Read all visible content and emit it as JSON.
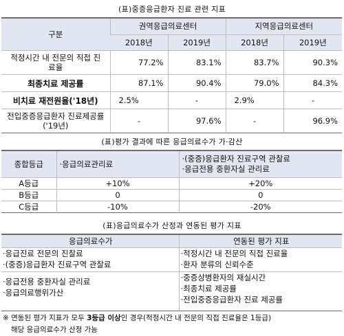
{
  "table1": {
    "caption": "(표)중증응급환자 진료 관련 지표",
    "header": {
      "category": "구분",
      "group1": "권역응급의료센터",
      "group2": "지역응급의료센터",
      "years": [
        "2018년",
        "2019년",
        "2018년",
        "2019년"
      ]
    },
    "rows": [
      {
        "label": "적정시간 내 전문의 직접 진료율",
        "values": [
          "77.2%",
          "83.1%",
          "83.7%",
          "90.3%"
        ]
      },
      {
        "label": "최종치료 제공률",
        "values": [
          "87.1%",
          "90.4%",
          "79.0%",
          "84.3%"
        ]
      },
      {
        "label": "비치료 재전원율('18년)",
        "values": [
          "2.5%",
          "-",
          "2.9%",
          "-"
        ]
      },
      {
        "label": "전입중증응급환자 진료제공률('19년)",
        "values": [
          "-",
          "97.6%",
          "-",
          "96.9%"
        ]
      }
    ]
  },
  "table2": {
    "caption": "(표)평가 결과에 따른 응급의료수가 가·감산",
    "header": {
      "grade": "종합등급",
      "col1": "·응급의료관리료",
      "col2_line1": "·(중증)응급환자 진료구역 관찰료",
      "col2_line2": "·응급전용 중환자실 관리료"
    },
    "rows": [
      {
        "grade": "A등급",
        "v1": "+10%",
        "v2": "+20%"
      },
      {
        "grade": "B등급",
        "v1": "0",
        "v2": "0"
      },
      {
        "grade": "C등급",
        "v1": "-10%",
        "v2": "-20%"
      }
    ]
  },
  "table3": {
    "caption": "(표)응급의료수가 산정과 연동된 평가 지표",
    "header": {
      "col1": "응급의료수가",
      "col2": "연동된 평가 지표"
    },
    "rows": [
      {
        "left": [
          "·응급진료 전문의 진찰료",
          "·(중증)응급환자 진료구역 관찰료"
        ],
        "right": [
          "·적정시간 내 전문의 직접 진료율",
          "·환자 분류의 신뢰수준"
        ]
      },
      {
        "left": [
          "·응급전용 중환자실 관리료",
          "·응급의료행위가산"
        ],
        "right": [
          "·중증상병환자의 재실시간",
          "·최종치료 제공률",
          "·전입중증응급환자 진료 제공률"
        ]
      }
    ]
  },
  "note": {
    "prefix": "※ 연동된 평가 지표가 모두 ",
    "bold": "3등급 이상",
    "suffix": "인 경우(적정시간 내 전문의 직접 진료율은 1등급)",
    "line2": "해당 응급의료수가 산정 가능"
  }
}
